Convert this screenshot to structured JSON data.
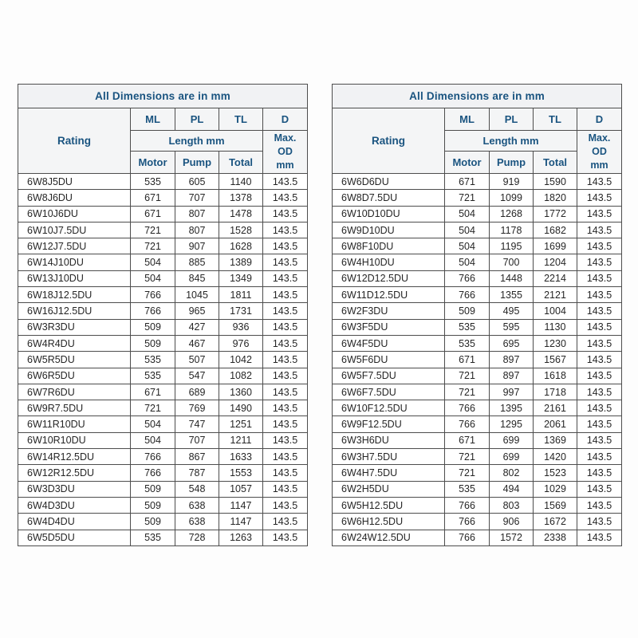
{
  "headers": {
    "title": "All Dimensions are in mm",
    "rating": "Rating",
    "ml": "ML",
    "pl": "PL",
    "tl": "TL",
    "d": "D",
    "length": "Length mm",
    "max_od": "Max. OD mm",
    "motor": "Motor",
    "pump": "Pump",
    "total": "Total"
  },
  "colors": {
    "header_text": "#1a5480",
    "data_text": "#262626",
    "border": "#4d4d4d",
    "header_bg": "#f1f2f4",
    "page_bg": "#ffffff"
  },
  "tables": [
    {
      "name": "left",
      "rows": [
        [
          "6W8J5DU",
          "535",
          "605",
          "1140",
          "143.5"
        ],
        [
          "6W8J6DU",
          "671",
          "707",
          "1378",
          "143.5"
        ],
        [
          "6W10J6DU",
          "671",
          "807",
          "1478",
          "143.5"
        ],
        [
          "6W10J7.5DU",
          "721",
          "807",
          "1528",
          "143.5"
        ],
        [
          "6W12J7.5DU",
          "721",
          "907",
          "1628",
          "143.5"
        ],
        [
          "6W14J10DU",
          "504",
          "885",
          "1389",
          "143.5"
        ],
        [
          "6W13J10DU",
          "504",
          "845",
          "1349",
          "143.5"
        ],
        [
          "6W18J12.5DU",
          "766",
          "1045",
          "1811",
          "143.5"
        ],
        [
          "6W16J12.5DU",
          "766",
          "965",
          "1731",
          "143.5"
        ],
        [
          "6W3R3DU",
          "509",
          "427",
          "936",
          "143.5"
        ],
        [
          "6W4R4DU",
          "509",
          "467",
          "976",
          "143.5"
        ],
        [
          "6W5R5DU",
          "535",
          "507",
          "1042",
          "143.5"
        ],
        [
          "6W6R5DU",
          "535",
          "547",
          "1082",
          "143.5"
        ],
        [
          "6W7R6DU",
          "671",
          "689",
          "1360",
          "143.5"
        ],
        [
          "6W9R7.5DU",
          "721",
          "769",
          "1490",
          "143.5"
        ],
        [
          "6W11R10DU",
          "504",
          "747",
          "1251",
          "143.5"
        ],
        [
          "6W10R10DU",
          "504",
          "707",
          "1211",
          "143.5"
        ],
        [
          "6W14R12.5DU",
          "766",
          "867",
          "1633",
          "143.5"
        ],
        [
          "6W12R12.5DU",
          "766",
          "787",
          "1553",
          "143.5"
        ],
        [
          "6W3D3DU",
          "509",
          "548",
          "1057",
          "143.5"
        ],
        [
          "6W4D3DU",
          "509",
          "638",
          "1147",
          "143.5"
        ],
        [
          "6W4D4DU",
          "509",
          "638",
          "1147",
          "143.5"
        ],
        [
          "6W5D5DU",
          "535",
          "728",
          "1263",
          "143.5"
        ]
      ]
    },
    {
      "name": "right",
      "rows": [
        [
          "6W6D6DU",
          "671",
          "919",
          "1590",
          "143.5"
        ],
        [
          "6W8D7.5DU",
          "721",
          "1099",
          "1820",
          "143.5"
        ],
        [
          "6W10D10DU",
          "504",
          "1268",
          "1772",
          "143.5"
        ],
        [
          "6W9D10DU",
          "504",
          "1178",
          "1682",
          "143.5"
        ],
        [
          "6W8F10DU",
          "504",
          "1195",
          "1699",
          "143.5"
        ],
        [
          "6W4H10DU",
          "504",
          "700",
          "1204",
          "143.5"
        ],
        [
          "6W12D12.5DU",
          "766",
          "1448",
          "2214",
          "143.5"
        ],
        [
          "6W11D12.5DU",
          "766",
          "1355",
          "2121",
          "143.5"
        ],
        [
          "6W2F3DU",
          "509",
          "495",
          "1004",
          "143.5"
        ],
        [
          "6W3F5DU",
          "535",
          "595",
          "1130",
          "143.5"
        ],
        [
          "6W4F5DU",
          "535",
          "695",
          "1230",
          "143.5"
        ],
        [
          "6W5F6DU",
          "671",
          "897",
          "1567",
          "143.5"
        ],
        [
          "6W5F7.5DU",
          "721",
          "897",
          "1618",
          "143.5"
        ],
        [
          "6W6F7.5DU",
          "721",
          "997",
          "1718",
          "143.5"
        ],
        [
          "6W10F12.5DU",
          "766",
          "1395",
          "2161",
          "143.5"
        ],
        [
          "6W9F12.5DU",
          "766",
          "1295",
          "2061",
          "143.5"
        ],
        [
          "6W3H6DU",
          "671",
          "699",
          "1369",
          "143.5"
        ],
        [
          "6W3H7.5DU",
          "721",
          "699",
          "1420",
          "143.5"
        ],
        [
          "6W4H7.5DU",
          "721",
          "802",
          "1523",
          "143.5"
        ],
        [
          "6W2H5DU",
          "535",
          "494",
          "1029",
          "143.5"
        ],
        [
          "6W5H12.5DU",
          "766",
          "803",
          "1569",
          "143.5"
        ],
        [
          "6W6H12.5DU",
          "766",
          "906",
          "1672",
          "143.5"
        ],
        [
          "6W24W12.5DU",
          "766",
          "1572",
          "2338",
          "143.5"
        ]
      ]
    }
  ]
}
